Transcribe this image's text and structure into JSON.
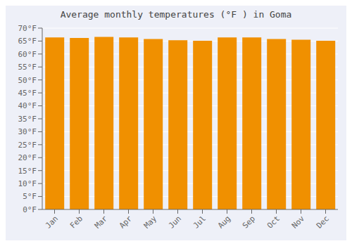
{
  "chart_data": {
    "type": "bar",
    "title": "Average monthly temperatures (°F ) in Goma",
    "categories": [
      "Jan",
      "Feb",
      "Mar",
      "Apr",
      "May",
      "Jun",
      "Jul",
      "Aug",
      "Sep",
      "Oct",
      "Nov",
      "Dec"
    ],
    "values": [
      66.4,
      66.2,
      66.6,
      66.4,
      65.8,
      65.3,
      65.1,
      66.4,
      66.4,
      65.8,
      65.5,
      65.1
    ],
    "color": "#F09000",
    "ylim": [
      0,
      70
    ],
    "yticks": [
      {
        "value": 0,
        "label": "0°F"
      },
      {
        "value": 5,
        "label": "5°F"
      },
      {
        "value": 10,
        "label": "10°F"
      },
      {
        "value": 15,
        "label": "15°F"
      },
      {
        "value": 20,
        "label": "20°F"
      },
      {
        "value": 25,
        "label": "25°F"
      },
      {
        "value": 30,
        "label": "30°F"
      },
      {
        "value": 35,
        "label": "35°F"
      },
      {
        "value": 40,
        "label": "40°F"
      },
      {
        "value": 45,
        "label": "45°F"
      },
      {
        "value": 50,
        "label": "50°F"
      },
      {
        "value": 55,
        "label": "55°F"
      },
      {
        "value": 60,
        "label": "60°F"
      },
      {
        "value": 65,
        "label": "65°F"
      },
      {
        "value": 70,
        "label": "70°F"
      }
    ],
    "grid": true
  }
}
